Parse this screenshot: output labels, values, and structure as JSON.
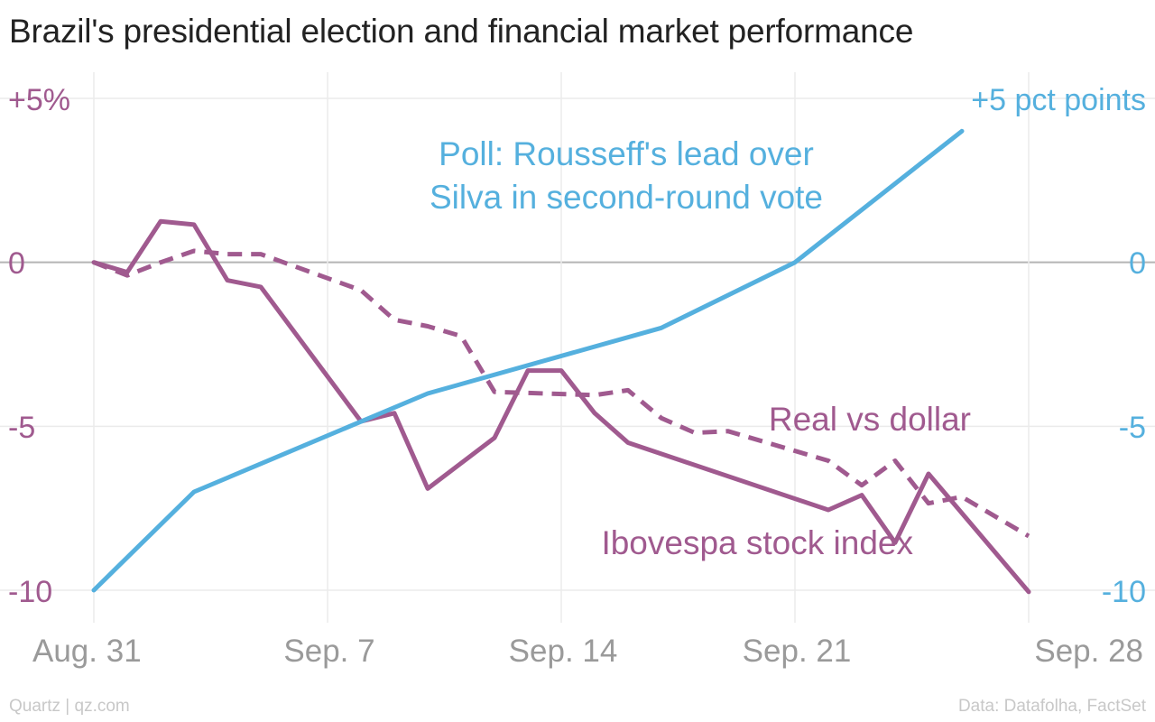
{
  "title": "Brazil's presidential election and financial market performance",
  "footer": {
    "source_left": "Quartz | qz.com",
    "source_right": "Data: Datafolha, FactSet"
  },
  "colors": {
    "markets": "#a05a8f",
    "poll": "#55b0de",
    "grid": "#ebebeb",
    "zero_line": "#b5b5b5",
    "x_tick": "#9a9a9a"
  },
  "chart_data": {
    "type": "line",
    "title": "Brazil's presidential election and financial market performance",
    "x_axis": {
      "type": "date",
      "ticks": [
        "2014-08-31",
        "2014-09-07",
        "2014-09-14",
        "2014-09-21",
        "2014-09-28"
      ],
      "tick_labels": [
        "Aug. 31",
        "Sep. 7",
        "Sep. 14",
        "Sep. 21",
        "Sep. 28"
      ],
      "range": [
        "2014-08-31",
        "2014-09-28"
      ]
    },
    "left_axis": {
      "unit": "percent change",
      "ticks": [
        5,
        0,
        -5,
        -10
      ],
      "tick_labels": [
        "+5%",
        "0",
        "-5",
        "-10"
      ],
      "range": [
        -10,
        5
      ]
    },
    "right_axis": {
      "unit": "percentage points",
      "ticks": [
        5,
        0,
        -5,
        -10
      ],
      "tick_labels": [
        "+5 pct points",
        "0",
        "-5",
        "-10"
      ],
      "range": [
        -10,
        5
      ]
    },
    "grid": true,
    "series": [
      {
        "name": "Ibovespa stock index",
        "axis": "left",
        "style": "solid",
        "color": "#a05a8f",
        "points": [
          [
            "2014-09-01",
            -0.3
          ],
          [
            "2014-09-02",
            1.25
          ],
          [
            "2014-09-03",
            1.15
          ],
          [
            "2014-09-04",
            -0.55
          ],
          [
            "2014-09-05",
            -0.75
          ],
          [
            "2014-09-08",
            -4.85
          ],
          [
            "2014-09-09",
            -4.6
          ],
          [
            "2014-09-10",
            -6.9
          ],
          [
            "2014-09-12",
            -5.35
          ],
          [
            "2014-09-13",
            -3.3
          ],
          [
            "2014-09-14",
            -3.3
          ],
          [
            "2014-09-15",
            -4.6
          ],
          [
            "2014-09-16",
            -5.5
          ],
          [
            "2014-09-22",
            -7.55
          ],
          [
            "2014-09-23",
            -7.1
          ],
          [
            "2014-09-24",
            -8.55
          ],
          [
            "2014-09-25",
            -6.45
          ],
          [
            "2014-09-28",
            -10.05
          ]
        ]
      },
      {
        "name": "Real vs dollar",
        "axis": "left",
        "style": "dashed",
        "color": "#a05a8f",
        "points": [
          [
            "2014-09-01",
            -0.4
          ],
          [
            "2014-09-02",
            0.0
          ],
          [
            "2014-09-03",
            0.35
          ],
          [
            "2014-09-04",
            0.25
          ],
          [
            "2014-09-05",
            0.25
          ],
          [
            "2014-09-08",
            -0.85
          ],
          [
            "2014-09-09",
            -1.75
          ],
          [
            "2014-09-10",
            -1.95
          ],
          [
            "2014-09-11",
            -2.25
          ],
          [
            "2014-09-12",
            -3.95
          ],
          [
            "2014-09-15",
            -4.05
          ],
          [
            "2014-09-16",
            -3.9
          ],
          [
            "2014-09-17",
            -4.75
          ],
          [
            "2014-09-18",
            -5.2
          ],
          [
            "2014-09-19",
            -5.15
          ],
          [
            "2014-09-22",
            -6.05
          ],
          [
            "2014-09-23",
            -6.8
          ],
          [
            "2014-09-24",
            -6.05
          ],
          [
            "2014-09-25",
            -7.35
          ],
          [
            "2014-09-26",
            -7.15
          ],
          [
            "2014-09-28",
            -8.35
          ]
        ]
      },
      {
        "name": "Poll: Rousseff's lead over Silva in second-round vote",
        "axis": "right",
        "style": "solid",
        "color": "#55b0de",
        "points": [
          [
            "2014-08-31",
            -10
          ],
          [
            "2014-09-03",
            -7
          ],
          [
            "2014-09-10",
            -4
          ],
          [
            "2014-09-17",
            -2
          ],
          [
            "2014-09-21",
            0
          ],
          [
            "2014-09-26",
            4
          ]
        ]
      }
    ],
    "annotations": [
      {
        "series": "Poll: Rousseff's lead over Silva in second-round vote",
        "lines": [
          "Poll: Rousseff's lead over",
          "Silva in second-round vote"
        ]
      },
      {
        "series": "Real vs dollar",
        "lines": [
          "Real vs dollar"
        ]
      },
      {
        "series": "Ibovespa stock index",
        "lines": [
          "Ibovespa stock index"
        ]
      }
    ]
  }
}
